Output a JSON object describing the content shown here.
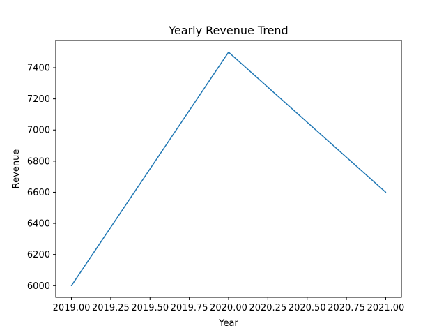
{
  "chart_data": {
    "type": "line",
    "title": "Yearly Revenue Trend",
    "xlabel": "Year",
    "ylabel": "Revenue",
    "x": [
      2019,
      2020,
      2021
    ],
    "series": [
      {
        "values": [
          6000,
          7500,
          6600
        ],
        "color": "#1f77b4"
      }
    ],
    "xlim": [
      2018.9,
      2021.1
    ],
    "ylim": [
      5925,
      7575
    ],
    "xticks": [
      2019.0,
      2019.25,
      2019.5,
      2019.75,
      2020.0,
      2020.25,
      2020.5,
      2020.75,
      2021.0
    ],
    "xtick_labels": [
      "2019.00",
      "2019.25",
      "2019.50",
      "2019.75",
      "2020.00",
      "2020.25",
      "2020.50",
      "2020.75",
      "2021.00"
    ],
    "yticks": [
      6000,
      6200,
      6400,
      6600,
      6800,
      7000,
      7200,
      7400
    ],
    "ytick_labels": [
      "6000",
      "6200",
      "6400",
      "6600",
      "6800",
      "7000",
      "7200",
      "7400"
    ],
    "grid": false,
    "legend": "none"
  }
}
